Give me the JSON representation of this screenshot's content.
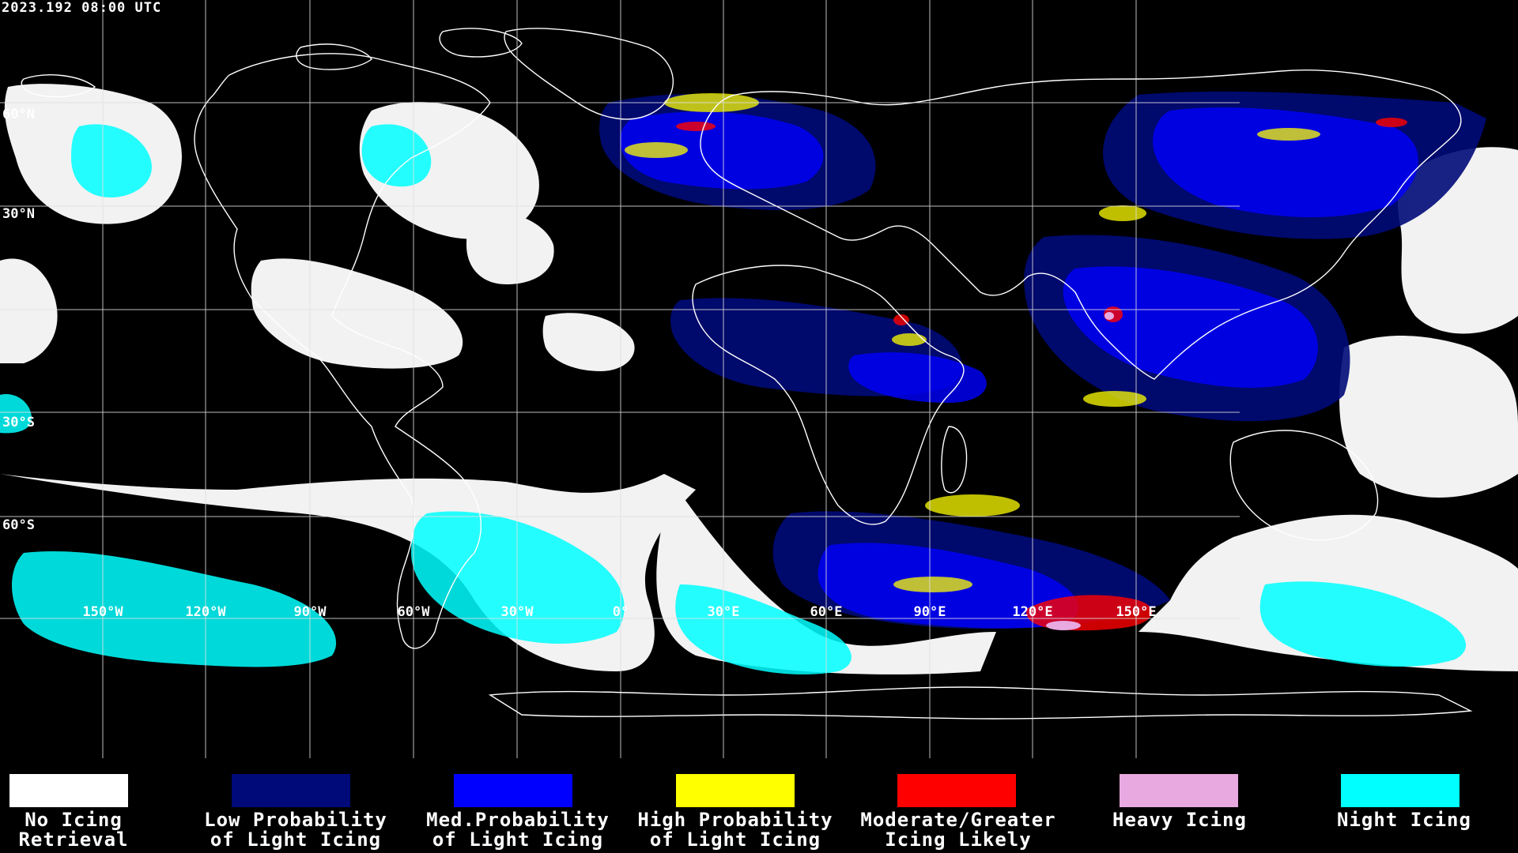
{
  "header": {
    "timestamp": "2023.192 08:00 UTC"
  },
  "map": {
    "longitude_labels": [
      "150°W",
      "120°W",
      "90°W",
      "60°W",
      "30°W",
      "0°",
      "30°E",
      "60°E",
      "90°E",
      "120°E",
      "150°E"
    ],
    "latitude_labels": [
      "60°N",
      "30°N",
      "30°S",
      "60°S"
    ]
  },
  "legend": [
    {
      "key": "no-icing",
      "line1": "No Icing",
      "line2": "Retrieval",
      "color": "#ffffff"
    },
    {
      "key": "low-probability",
      "line1": "Low Probability",
      "line2": "of Light Icing",
      "color": "#000a78"
    },
    {
      "key": "med-probability",
      "line1": "Med.Probability",
      "line2": "of Light Icing",
      "color": "#0000ff"
    },
    {
      "key": "high-probability",
      "line1": "High Probability",
      "line2": "of Light Icing",
      "color": "#ffff00"
    },
    {
      "key": "moderate-greater",
      "line1": "Moderate/Greater",
      "line2": "Icing Likely",
      "color": "#ff0000"
    },
    {
      "key": "heavy-icing",
      "line1": "Heavy Icing",
      "line2": "",
      "color": "#e8a8e0"
    },
    {
      "key": "night-icing",
      "line1": "Night Icing",
      "line2": "",
      "color": "#00ffff"
    }
  ]
}
